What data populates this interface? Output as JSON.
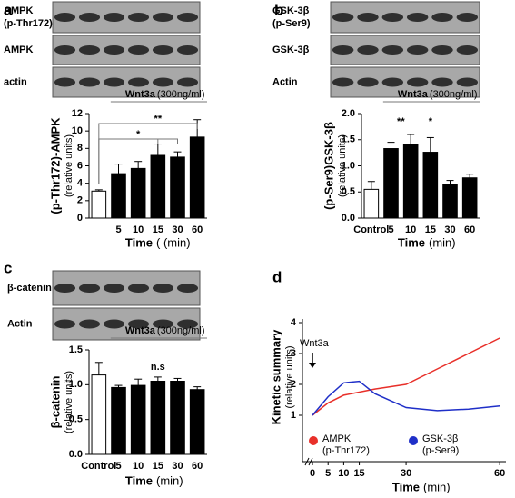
{
  "chart_data": [
    {
      "panel": "a",
      "type": "bar",
      "blot_labels": [
        [
          "AMPK",
          "(p-Thr172)"
        ],
        [
          "AMPK"
        ],
        [
          "actin"
        ]
      ],
      "ylabel": [
        "(p-Thr172)-AMPK",
        "(relative units)"
      ],
      "categories": [
        null,
        "5",
        "10",
        "15",
        "30",
        "60"
      ],
      "values": [
        3.1,
        5.1,
        5.7,
        7.2,
        7.0,
        9.3
      ],
      "errors": [
        0.15,
        1.1,
        0.8,
        1.3,
        0.6,
        2.0
      ],
      "colors": [
        "#ffffff",
        "#000000",
        "#000000",
        "#000000",
        "#000000",
        "#000000"
      ],
      "ylim": [
        0,
        12
      ],
      "yticks": [
        0,
        2,
        4,
        6,
        8,
        10,
        12
      ],
      "treatment": "Wnt3a",
      "dose": "(300ng/ml)",
      "xlabel": "Time",
      "xlabel_unit": "( (min)",
      "significance": [
        "**",
        "*"
      ]
    },
    {
      "panel": "b",
      "type": "bar",
      "blot_labels": [
        [
          "GSK-3β",
          "(p-Ser9)"
        ],
        [
          "GSK-3β"
        ],
        [
          "Actin"
        ]
      ],
      "ylabel": [
        "(p-Ser9)GSK-3β",
        "(relative units)"
      ],
      "categories": [
        "Control",
        "5",
        "10",
        "15",
        "30",
        "60"
      ],
      "values": [
        0.55,
        1.33,
        1.4,
        1.26,
        0.65,
        0.77
      ],
      "errors": [
        0.15,
        0.12,
        0.2,
        0.28,
        0.07,
        0.07
      ],
      "colors": [
        "#ffffff",
        "#000000",
        "#000000",
        "#000000",
        "#000000",
        "#000000"
      ],
      "ylim": [
        0,
        2
      ],
      "yticks": [
        {
          "value": 0,
          "label": "0.0"
        },
        {
          "value": 0.5,
          "label": "0.5"
        },
        {
          "value": 1,
          "label": "1.0"
        },
        {
          "value": 1.5,
          "label": "1.5"
        },
        {
          "value": 2,
          "label": "2.0"
        }
      ],
      "treatment": "Wnt3a",
      "dose": "(300ng/ml)",
      "xlabel": "Time",
      "xlabel_unit": "(min)",
      "significance": [
        "**",
        "*"
      ]
    },
    {
      "panel": "c",
      "type": "bar",
      "blot_labels": [
        [
          "β-catenin"
        ],
        [
          "Actin"
        ]
      ],
      "ylabel": [
        "β-catenin",
        "(relative units)"
      ],
      "categories": [
        "Control",
        "5",
        "10",
        "15",
        "30",
        "60"
      ],
      "values": [
        1.14,
        0.96,
        0.99,
        1.05,
        1.05,
        0.93
      ],
      "errors": [
        0.18,
        0.03,
        0.09,
        0.06,
        0.04,
        0.04
      ],
      "colors": [
        "#ffffff",
        "#000000",
        "#000000",
        "#000000",
        "#000000",
        "#000000"
      ],
      "ylim": [
        0,
        1.5
      ],
      "yticks": [
        {
          "value": 0,
          "label": "0.0"
        },
        {
          "value": 0.5,
          "label": "0.5"
        },
        {
          "value": 1,
          "label": "1.0"
        },
        {
          "value": 1.5,
          "label": "1.5"
        }
      ],
      "treatment": "Wnt3a",
      "dose": "(300ng/ml)",
      "xlabel": "Time",
      "xlabel_unit": "(min)",
      "significance": [
        "n.s"
      ]
    },
    {
      "panel": "d",
      "type": "line",
      "ylabel": [
        "Kinetic summary",
        "(relative units)"
      ],
      "annotation": "Wnt3a",
      "x": [
        0,
        5,
        10,
        15,
        20,
        30,
        40,
        50,
        60
      ],
      "series": [
        {
          "name": "AMPK",
          "subname": "(p-Thr172)",
          "color": "#e8302a",
          "values": [
            1.0,
            1.4,
            1.65,
            1.75,
            1.85,
            2.0,
            2.5,
            3.0,
            3.5
          ]
        },
        {
          "name": "GSK-3β",
          "subname": "(p-Ser9)",
          "color": "#1f2fc8",
          "values": [
            1.0,
            1.6,
            2.05,
            2.1,
            1.7,
            1.25,
            1.15,
            1.2,
            1.3
          ]
        }
      ],
      "xlim": [
        -7,
        62
      ],
      "xticks": [
        0,
        5,
        10,
        15,
        30,
        60
      ],
      "ylim": [
        -0.5,
        4
      ],
      "yticks": [
        1,
        2,
        3,
        4
      ],
      "xlabel": "Time",
      "xlabel_unit": "(min)"
    }
  ]
}
